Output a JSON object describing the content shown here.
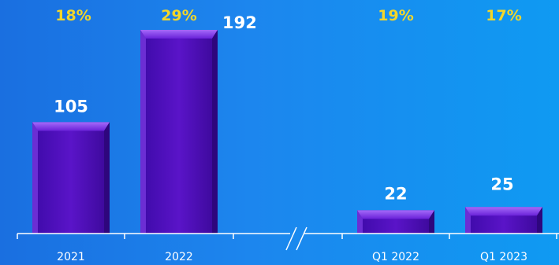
{
  "chart_data": {
    "type": "bar",
    "categories": [
      "2021",
      "2022",
      "Q1 2022",
      "Q1 2023"
    ],
    "values": [
      105,
      192,
      22,
      25
    ],
    "growth_labels": [
      "18%",
      "29%",
      "19%",
      "17%"
    ],
    "axis_break": true,
    "title": "",
    "xlabel": "",
    "ylabel": "",
    "ylim": [
      0,
      200
    ],
    "grid": false,
    "legend": "none"
  },
  "colors": {
    "bar_fill": "#5a14c8",
    "bar_highlight": "#8f4cf5",
    "bar_shadow": "#2a0675",
    "growth_text": "#f2d62a",
    "value_text": "#ffffff",
    "axis_line": "#ffffff"
  }
}
